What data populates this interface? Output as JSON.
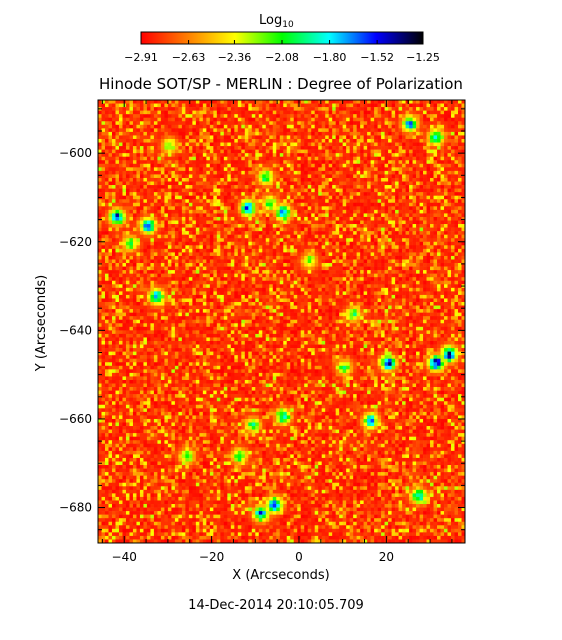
{
  "chart_data": {
    "type": "heatmap",
    "title": "Hinode SOT/SP - MERLIN : Degree of Polarization",
    "xlabel": "X (Arcseconds)",
    "ylabel": "Y (Arcseconds)",
    "xlim": [
      -46,
      38
    ],
    "ylim": [
      -688,
      -588
    ],
    "x_ticks": [
      -40,
      -20,
      0,
      20
    ],
    "x_tick_labels": [
      "−40",
      "−20",
      "0",
      "20"
    ],
    "y_ticks": [
      -600,
      -620,
      -640,
      -660,
      -680
    ],
    "y_tick_labels": [
      "−600",
      "−620",
      "−640",
      "−660",
      "−680"
    ],
    "colorbar": {
      "label": "Log",
      "label_sub": "10",
      "ticks": [
        -2.91,
        -2.63,
        -2.36,
        -2.08,
        -1.8,
        -1.52,
        -1.25
      ],
      "tick_labels": [
        "−2.91",
        "−2.63",
        "−2.36",
        "−2.08",
        "−1.80",
        "−1.52",
        "−1.25"
      ],
      "colormap": [
        "#ff0000",
        "#ff7f00",
        "#ffff00",
        "#00ff00",
        "#00ffff",
        "#0000ff",
        "#000000"
      ]
    },
    "background_value": -2.85,
    "features": [
      {
        "x": -42,
        "y": -614,
        "value": -1.45
      },
      {
        "x": -35,
        "y": -616,
        "value": -1.5
      },
      {
        "x": -39,
        "y": -620,
        "value": -1.95
      },
      {
        "x": -33,
        "y": -632,
        "value": -1.55
      },
      {
        "x": -8,
        "y": -605,
        "value": -1.9
      },
      {
        "x": -12,
        "y": -612,
        "value": -1.5
      },
      {
        "x": -4,
        "y": -613,
        "value": -1.45
      },
      {
        "x": -7,
        "y": -611,
        "value": -1.95
      },
      {
        "x": 25,
        "y": -593,
        "value": -1.6
      },
      {
        "x": 31,
        "y": -596,
        "value": -1.7
      },
      {
        "x": 20,
        "y": -647,
        "value": -1.4
      },
      {
        "x": 31,
        "y": -647,
        "value": -1.3
      },
      {
        "x": 34,
        "y": -645,
        "value": -1.35
      },
      {
        "x": 10,
        "y": -648,
        "value": -2.0
      },
      {
        "x": -6,
        "y": -679,
        "value": -1.4
      },
      {
        "x": -9,
        "y": -681,
        "value": -1.55
      },
      {
        "x": -14,
        "y": -668,
        "value": -1.9
      },
      {
        "x": -11,
        "y": -661,
        "value": -1.95
      },
      {
        "x": -4,
        "y": -659,
        "value": -1.7
      },
      {
        "x": 16,
        "y": -660,
        "value": -1.6
      },
      {
        "x": 27,
        "y": -677,
        "value": -1.7
      },
      {
        "x": 12,
        "y": -636,
        "value": -1.95
      },
      {
        "x": -26,
        "y": -668,
        "value": -2.0
      },
      {
        "x": 2,
        "y": -624,
        "value": -2.05
      },
      {
        "x": -30,
        "y": -598,
        "value": -2.05
      }
    ]
  },
  "timestamp": "14-Dec-2014 20:10:05.709"
}
